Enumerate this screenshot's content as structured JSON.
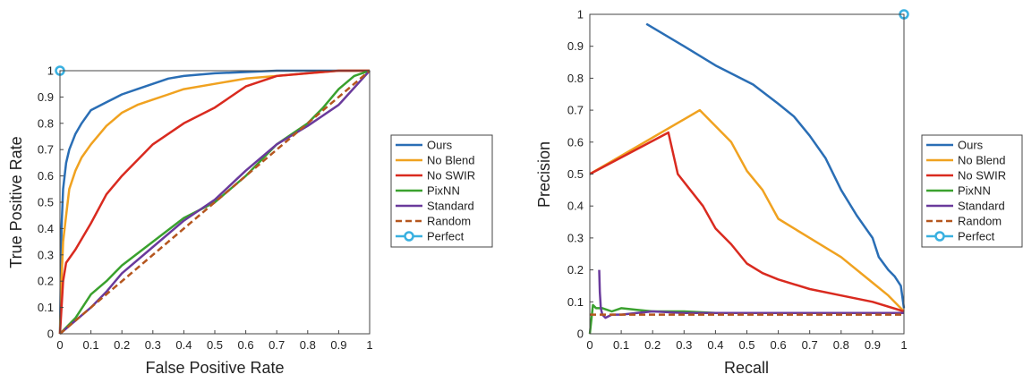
{
  "chart_data": [
    {
      "type": "line",
      "xlabel": "False Positive Rate",
      "ylabel": "True Positive Rate",
      "xlim": [
        0,
        1
      ],
      "ylim": [
        0,
        1
      ],
      "xticks": [
        "0",
        "0.1",
        "0.2",
        "0.3",
        "0.4",
        "0.5",
        "0.6",
        "0.7",
        "0.8",
        "0.9",
        "1"
      ],
      "yticks": [
        "0",
        "0.1",
        "0.2",
        "0.3",
        "0.4",
        "0.5",
        "0.6",
        "0.7",
        "0.8",
        "0.9",
        "1"
      ],
      "legend_position": "right",
      "grid": false,
      "series": [
        {
          "name": "Ours",
          "color": "#2a6eb5",
          "style": "solid",
          "x": [
            0,
            0.005,
            0.01,
            0.02,
            0.03,
            0.05,
            0.07,
            0.1,
            0.15,
            0.2,
            0.25,
            0.3,
            0.35,
            0.4,
            0.5,
            0.6,
            0.7,
            0.8,
            0.9,
            1
          ],
          "y": [
            0,
            0.4,
            0.55,
            0.65,
            0.7,
            0.76,
            0.8,
            0.85,
            0.88,
            0.91,
            0.93,
            0.95,
            0.97,
            0.98,
            0.99,
            0.995,
            1,
            1,
            1,
            1
          ]
        },
        {
          "name": "No Blend",
          "color": "#f0a220",
          "style": "solid",
          "x": [
            0,
            0.005,
            0.01,
            0.02,
            0.03,
            0.05,
            0.07,
            0.1,
            0.15,
            0.2,
            0.25,
            0.3,
            0.35,
            0.4,
            0.5,
            0.6,
            0.7,
            0.8,
            0.9,
            1
          ],
          "y": [
            0,
            0.2,
            0.35,
            0.45,
            0.55,
            0.62,
            0.67,
            0.72,
            0.79,
            0.84,
            0.87,
            0.89,
            0.91,
            0.93,
            0.95,
            0.97,
            0.98,
            0.99,
            1,
            1
          ]
        },
        {
          "name": "No SWIR",
          "color": "#d92a1f",
          "style": "solid",
          "x": [
            0,
            0.01,
            0.02,
            0.05,
            0.1,
            0.15,
            0.2,
            0.3,
            0.4,
            0.5,
            0.6,
            0.7,
            0.8,
            0.9,
            1
          ],
          "y": [
            0,
            0.2,
            0.27,
            0.32,
            0.42,
            0.53,
            0.6,
            0.72,
            0.8,
            0.86,
            0.94,
            0.98,
            0.99,
            1,
            1
          ]
        },
        {
          "name": "PixNN",
          "color": "#3aa12e",
          "style": "solid",
          "x": [
            0,
            0.05,
            0.1,
            0.15,
            0.2,
            0.3,
            0.4,
            0.5,
            0.6,
            0.7,
            0.8,
            0.85,
            0.9,
            0.95,
            1
          ],
          "y": [
            0,
            0.06,
            0.15,
            0.2,
            0.26,
            0.35,
            0.44,
            0.5,
            0.6,
            0.72,
            0.8,
            0.86,
            0.93,
            0.98,
            1
          ]
        },
        {
          "name": "Standard",
          "color": "#6a3a9c",
          "style": "solid",
          "x": [
            0,
            0.05,
            0.1,
            0.15,
            0.2,
            0.3,
            0.4,
            0.5,
            0.6,
            0.7,
            0.8,
            0.9,
            1
          ],
          "y": [
            0,
            0.05,
            0.1,
            0.16,
            0.23,
            0.33,
            0.43,
            0.51,
            0.62,
            0.72,
            0.79,
            0.87,
            1
          ]
        },
        {
          "name": "Random",
          "color": "#b5561e",
          "style": "dashed",
          "x": [
            0,
            1
          ],
          "y": [
            0,
            1
          ]
        },
        {
          "name": "Perfect",
          "color": "#39b0e0",
          "style": "marker",
          "x": [
            0
          ],
          "y": [
            1
          ]
        }
      ]
    },
    {
      "type": "line",
      "xlabel": "Recall",
      "ylabel": "Precision",
      "xlim": [
        0,
        1
      ],
      "ylim": [
        0,
        1
      ],
      "xticks": [
        "0",
        "0.1",
        "0.2",
        "0.3",
        "0.4",
        "0.5",
        "0.6",
        "0.7",
        "0.8",
        "0.9",
        "1"
      ],
      "yticks": [
        "0",
        "0.1",
        "0.2",
        "0.3",
        "0.4",
        "0.5",
        "0.6",
        "0.7",
        "0.8",
        "0.9",
        "1"
      ],
      "legend_position": "right",
      "grid": false,
      "series": [
        {
          "name": "Ours",
          "color": "#2a6eb5",
          "style": "solid",
          "x": [
            0.18,
            0.3,
            0.4,
            0.52,
            0.6,
            0.65,
            0.7,
            0.75,
            0.8,
            0.85,
            0.9,
            0.92,
            0.95,
            0.97,
            0.99,
            1
          ],
          "y": [
            0.97,
            0.9,
            0.84,
            0.78,
            0.72,
            0.68,
            0.62,
            0.55,
            0.45,
            0.37,
            0.3,
            0.24,
            0.2,
            0.18,
            0.15,
            0.08
          ]
        },
        {
          "name": "No Blend",
          "color": "#f0a220",
          "style": "solid",
          "x": [
            0,
            0.35,
            0.45,
            0.5,
            0.55,
            0.6,
            0.65,
            0.7,
            0.8,
            0.9,
            0.95,
            1
          ],
          "y": [
            0.5,
            0.7,
            0.6,
            0.51,
            0.45,
            0.36,
            0.33,
            0.3,
            0.24,
            0.16,
            0.12,
            0.07
          ]
        },
        {
          "name": "No SWIR",
          "color": "#d92a1f",
          "style": "solid",
          "x": [
            0,
            0.25,
            0.28,
            0.32,
            0.36,
            0.4,
            0.45,
            0.5,
            0.55,
            0.6,
            0.7,
            0.8,
            0.9,
            1
          ],
          "y": [
            0.5,
            0.63,
            0.5,
            0.45,
            0.4,
            0.33,
            0.28,
            0.22,
            0.19,
            0.17,
            0.14,
            0.12,
            0.1,
            0.07
          ]
        },
        {
          "name": "PixNN",
          "color": "#3aa12e",
          "style": "solid",
          "x": [
            0,
            0.01,
            0.02,
            0.04,
            0.07,
            0.1,
            0.15,
            0.2,
            0.3,
            0.4,
            0.5,
            0.6,
            0.7,
            0.8,
            0.9,
            1
          ],
          "y": [
            0,
            0.09,
            0.08,
            0.08,
            0.07,
            0.08,
            0.075,
            0.07,
            0.07,
            0.065,
            0.065,
            0.065,
            0.065,
            0.065,
            0.065,
            0.065
          ]
        },
        {
          "name": "Standard",
          "color": "#6a3a9c",
          "style": "solid",
          "x": [
            0.03,
            0.032,
            0.035,
            0.04,
            0.05,
            0.07,
            0.1,
            0.15,
            0.2,
            0.3,
            0.5,
            0.7,
            0.9,
            1
          ],
          "y": [
            0.2,
            0.13,
            0.08,
            0.06,
            0.05,
            0.06,
            0.06,
            0.065,
            0.07,
            0.065,
            0.065,
            0.065,
            0.065,
            0.065
          ]
        },
        {
          "name": "Random",
          "color": "#b5561e",
          "style": "dashed",
          "x": [
            0,
            1
          ],
          "y": [
            0.06,
            0.06
          ]
        },
        {
          "name": "Perfect",
          "color": "#39b0e0",
          "style": "marker",
          "x": [
            1
          ],
          "y": [
            1
          ]
        }
      ]
    }
  ]
}
